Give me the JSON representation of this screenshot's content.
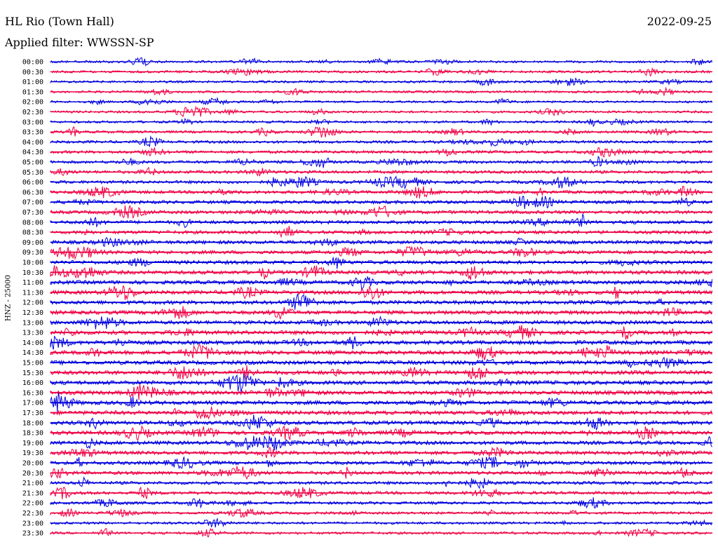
{
  "header": {
    "station": "HL Rio (Town Hall)",
    "date": "2022-09-25",
    "filter_label": "Applied filter: WWSSN-SP"
  },
  "chart_data": {
    "type": "line",
    "title": "HL Rio (Town Hall)",
    "ylabel": "HNZ - 25000",
    "xlabel": "",
    "row_labels": [
      "00:00",
      "00:30",
      "01:00",
      "01:30",
      "02:00",
      "02:30",
      "03:00",
      "03:30",
      "04:00",
      "04:30",
      "05:00",
      "05:30",
      "06:00",
      "06:30",
      "07:00",
      "07:30",
      "08:00",
      "08:30",
      "09:00",
      "09:30",
      "10:00",
      "10:30",
      "11:00",
      "11:30",
      "12:00",
      "12:30",
      "13:00",
      "13:30",
      "14:00",
      "14:30",
      "15:00",
      "15:30",
      "16:00",
      "16:30",
      "17:00",
      "17:30",
      "18:00",
      "18:30",
      "19:00",
      "19:30",
      "20:00",
      "20:30",
      "21:00",
      "21:30",
      "22:00",
      "22:30",
      "23:00",
      "23:30"
    ],
    "row_activity": [
      0.3,
      0.35,
      0.3,
      0.28,
      0.25,
      0.3,
      0.3,
      0.4,
      0.45,
      0.5,
      0.5,
      0.55,
      0.55,
      0.6,
      0.65,
      0.65,
      0.65,
      0.65,
      0.7,
      0.7,
      0.75,
      0.8,
      0.8,
      0.8,
      0.8,
      0.8,
      0.8,
      0.85,
      0.85,
      0.85,
      0.85,
      0.85,
      0.85,
      0.85,
      0.85,
      0.85,
      0.8,
      0.8,
      0.75,
      0.75,
      0.7,
      0.65,
      0.55,
      0.55,
      0.45,
      0.4,
      0.35,
      0.35
    ],
    "colors": [
      "#0000dd",
      "#ee0044"
    ],
    "grid": false,
    "legend": "none"
  }
}
